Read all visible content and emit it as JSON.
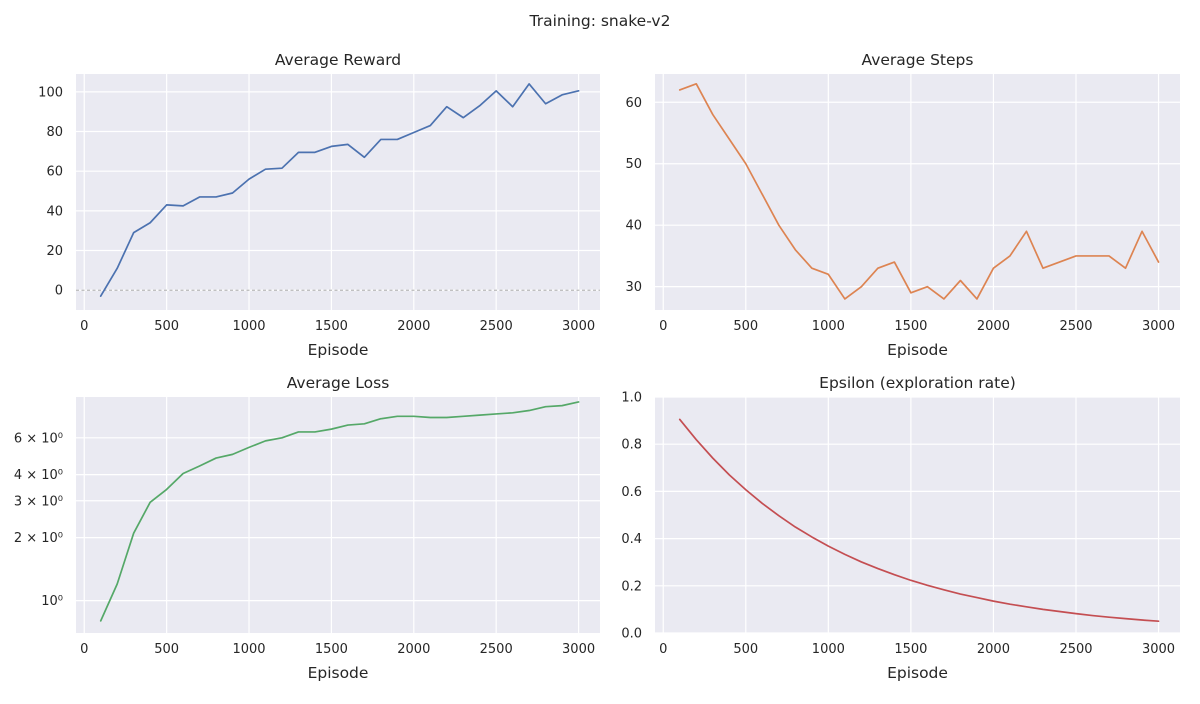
{
  "suptitle": "Training: snake-v2",
  "chart_data": [
    {
      "type": "line",
      "title": "Average Reward",
      "xlabel": "Episode",
      "ylabel": "",
      "xlim": [
        -50,
        3130
      ],
      "ylim": [
        -10,
        109
      ],
      "xticks": [
        0,
        500,
        1000,
        1500,
        2000,
        2500,
        3000
      ],
      "yticks": [
        0,
        20,
        40,
        60,
        80,
        100
      ],
      "ytick_labels": [
        "0",
        "20",
        "40",
        "60",
        "80",
        "100"
      ],
      "yscale": "linear",
      "reference_line": {
        "y": 0,
        "style": "dashed",
        "color": "#a0a0a0"
      },
      "grid": true,
      "series": [
        {
          "color": "#4c72b0",
          "x": [
            100,
            200,
            300,
            400,
            500,
            600,
            700,
            800,
            900,
            1000,
            1100,
            1200,
            1300,
            1400,
            1500,
            1600,
            1700,
            1800,
            1900,
            2000,
            2100,
            2200,
            2300,
            2400,
            2500,
            2600,
            2700,
            2800,
            2900,
            3000
          ],
          "y": [
            -3,
            11,
            29,
            34,
            43,
            42.5,
            47,
            47,
            49,
            56,
            61,
            61.5,
            69.5,
            69.5,
            72.5,
            73.5,
            67,
            76,
            76,
            79.5,
            83,
            92.5,
            87,
            93,
            100.5,
            92.5,
            104,
            94,
            98.5,
            100.5
          ]
        }
      ]
    },
    {
      "type": "line",
      "title": "Average Steps",
      "xlabel": "Episode",
      "ylabel": "",
      "xlim": [
        -50,
        3130
      ],
      "ylim": [
        26.2,
        64.6
      ],
      "xticks": [
        0,
        500,
        1000,
        1500,
        2000,
        2500,
        3000
      ],
      "yticks": [
        30,
        40,
        50,
        60
      ],
      "ytick_labels": [
        "30",
        "40",
        "50",
        "60"
      ],
      "yscale": "linear",
      "grid": true,
      "series": [
        {
          "color": "#dd8452",
          "x": [
            100,
            200,
            300,
            400,
            500,
            600,
            700,
            800,
            900,
            1000,
            1100,
            1200,
            1300,
            1400,
            1500,
            1600,
            1700,
            1800,
            1900,
            2000,
            2100,
            2200,
            2300,
            2400,
            2500,
            2600,
            2700,
            2800,
            2900,
            3000
          ],
          "y": [
            62,
            63,
            58,
            54,
            50,
            45,
            40,
            36,
            33,
            32,
            28,
            30,
            33,
            34,
            29,
            30,
            28,
            31,
            28,
            33,
            35,
            39,
            33,
            34,
            35,
            35,
            35,
            33,
            39,
            34
          ]
        }
      ]
    },
    {
      "type": "line",
      "title": "Average Loss",
      "xlabel": "Episode",
      "ylabel": "",
      "xlim": [
        -50,
        3130
      ],
      "ylim": [
        0.7,
        9.4
      ],
      "xticks": [
        0,
        500,
        1000,
        1500,
        2000,
        2500,
        3000
      ],
      "yticks": [
        1,
        2,
        3,
        4,
        6
      ],
      "ytick_labels": [
        "10⁰",
        "2 × 10⁰",
        "3 × 10⁰",
        "4 × 10⁰",
        "6 × 10⁰"
      ],
      "yscale": "log",
      "grid": true,
      "series": [
        {
          "color": "#55a868",
          "x": [
            100,
            200,
            300,
            400,
            500,
            600,
            700,
            800,
            900,
            1000,
            1100,
            1200,
            1300,
            1400,
            1500,
            1600,
            1700,
            1800,
            1900,
            2000,
            2100,
            2200,
            2300,
            2400,
            2500,
            2600,
            2700,
            2800,
            2900,
            3000
          ],
          "y": [
            0.8,
            1.2,
            2.1,
            2.95,
            3.4,
            4.05,
            4.4,
            4.8,
            5.0,
            5.4,
            5.8,
            6.0,
            6.4,
            6.4,
            6.6,
            6.9,
            7.0,
            7.4,
            7.6,
            7.6,
            7.5,
            7.5,
            7.6,
            7.7,
            7.8,
            7.9,
            8.1,
            8.45,
            8.55,
            8.9
          ]
        }
      ]
    },
    {
      "type": "line",
      "title": "Epsilon (exploration rate)",
      "xlabel": "Episode",
      "ylabel": "",
      "xlim": [
        -50,
        3130
      ],
      "ylim": [
        0,
        1.0
      ],
      "xticks": [
        0,
        500,
        1000,
        1500,
        2000,
        2500,
        3000
      ],
      "yticks": [
        0.0,
        0.2,
        0.4,
        0.6,
        0.8,
        1.0
      ],
      "ytick_labels": [
        "0.0",
        "0.2",
        "0.4",
        "0.6",
        "0.8",
        "1.0"
      ],
      "yscale": "linear",
      "grid": true,
      "series": [
        {
          "color": "#c44e52",
          "x": [
            100,
            200,
            300,
            400,
            500,
            600,
            700,
            800,
            900,
            1000,
            1100,
            1200,
            1300,
            1400,
            1500,
            1600,
            1700,
            1800,
            1900,
            2000,
            2100,
            2200,
            2300,
            2400,
            2500,
            2600,
            2700,
            2800,
            2900,
            3000
          ],
          "y": [
            0.905,
            0.819,
            0.741,
            0.67,
            0.607,
            0.549,
            0.497,
            0.449,
            0.407,
            0.368,
            0.333,
            0.301,
            0.273,
            0.247,
            0.223,
            0.202,
            0.183,
            0.165,
            0.15,
            0.135,
            0.122,
            0.111,
            0.1,
            0.091,
            0.082,
            0.074,
            0.067,
            0.061,
            0.055,
            0.05
          ]
        }
      ]
    }
  ]
}
